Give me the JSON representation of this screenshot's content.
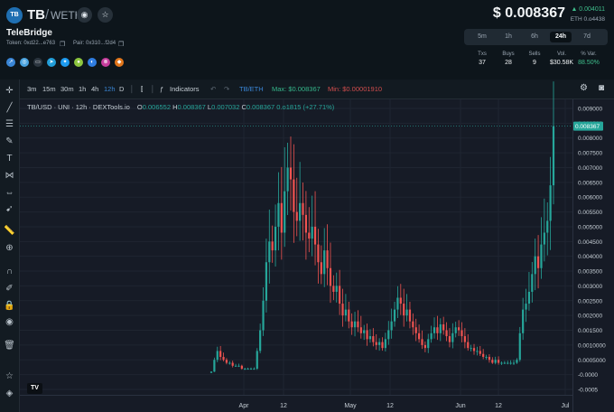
{
  "header": {
    "logo_text": "TB",
    "base": "TB",
    "separator": "/",
    "quote": "WETH",
    "token_name": "TeleBridge",
    "token_address": "Token: 0xd22...e763",
    "pair_address": "Pair: 0x310...f2d4",
    "price": "$ 0.008367",
    "change": "▲ 0.004011",
    "eth_price": "ETH 0.o4438"
  },
  "timeframes": [
    "5m",
    "1h",
    "6h",
    "24h",
    "7d"
  ],
  "active_timeframe": "24h",
  "stats": [
    {
      "label": "Txs",
      "value": "37"
    },
    {
      "label": "Buys",
      "value": "28"
    },
    {
      "label": "Sells",
      "value": "9"
    },
    {
      "label": "Vol.",
      "value": "$30.58K"
    },
    {
      "label": "% Var.",
      "value": "88.50%"
    }
  ],
  "toolbar": {
    "intervals": [
      "3m",
      "15m",
      "30m",
      "1h",
      "4h",
      "12h",
      "D"
    ],
    "active_interval": "12h",
    "indicators_label": "Indicators",
    "pair_label": "TB/ETH",
    "max_label": "Max: $0.008367",
    "min_label": "Min: $0.00001910"
  },
  "legend": {
    "title": "TB/USD · UNI · 12h · DEXTools.io",
    "open": "O",
    "open_val": "0.006552",
    "high": "H",
    "high_val": "0.008367",
    "low": "L",
    "low_val": "0.007032",
    "close": "C",
    "close_val": "0.008367",
    "change": "0.o1815 (+27.71%)"
  },
  "price_tag": "0.008367",
  "chart_data": {
    "type": "candlestick",
    "x_ticks": [
      "Apr",
      "12",
      "May",
      "12",
      "Jun",
      "12",
      "Jul"
    ],
    "y_ticks": [
      "0.009000",
      "0.008500",
      "0.008000",
      "0.007500",
      "0.007000",
      "0.006500",
      "0.006000",
      "0.005500",
      "0.005000",
      "0.004500",
      "0.004000",
      "0.003500",
      "0.003000",
      "0.002500",
      "0.002000",
      "0.001500",
      "0.0010000",
      "0.0005000",
      "-0.0000",
      "-0.0005"
    ],
    "ylim": [
      -0.0005,
      0.009
    ],
    "colors": {
      "up": "#26a69a",
      "down": "#ef5350"
    },
    "close_values": [
      0.0001,
      0.0005,
      0.0008,
      0.0006,
      0.0005,
      0.0004,
      0.0004,
      0.0003,
      0.0003,
      0.0003,
      0.0002,
      0.0002,
      0.0002,
      0.0002,
      0.0002,
      0.0008,
      0.0015,
      0.0025,
      0.0038,
      0.0045,
      0.0042,
      0.005,
      0.0058,
      0.0048,
      0.0062,
      0.007,
      0.0066,
      0.0055,
      0.0052,
      0.0058,
      0.0054,
      0.0048,
      0.0046,
      0.005,
      0.0044,
      0.0038,
      0.0034,
      0.0042,
      0.0036,
      0.003,
      0.0028,
      0.003,
      0.0024,
      0.002,
      0.0022,
      0.0018,
      0.0016,
      0.0018,
      0.0016,
      0.0014,
      0.0015,
      0.0012,
      0.0013,
      0.0011,
      0.001,
      0.0011,
      0.0009,
      0.0012,
      0.0015,
      0.0018,
      0.0022,
      0.0026,
      0.0024,
      0.002,
      0.0022,
      0.0018,
      0.0016,
      0.0014,
      0.0012,
      0.001,
      0.0009,
      0.0012,
      0.0014,
      0.0016,
      0.0014,
      0.0017,
      0.0015,
      0.0013,
      0.0011,
      0.0014,
      0.0016,
      0.0015,
      0.0013,
      0.0011,
      0.0009,
      0.0009,
      0.0008,
      0.0008,
      0.0007,
      0.0006,
      0.0006,
      0.0005,
      0.0004,
      0.0005,
      0.0004,
      0.0004,
      0.0004,
      0.0004,
      0.0004,
      0.0004,
      0.0005,
      0.0014,
      0.0022,
      0.0024,
      0.0028,
      0.0034,
      0.004,
      0.0036,
      0.0044,
      0.0048,
      0.0052,
      0.0064,
      0.0084
    ]
  }
}
